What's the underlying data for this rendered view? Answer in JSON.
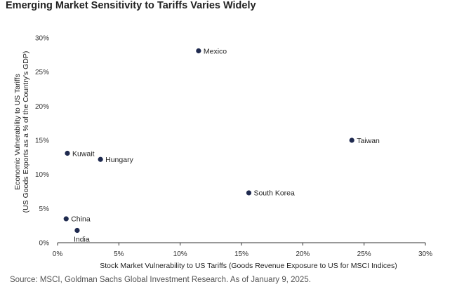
{
  "title": "Emerging Market Sensitivity to Tariffs Varies Widely",
  "source": "Source: MSCI, Goldman Sachs Global Investment Research. As of January 9, 2025.",
  "colors": {
    "point": "#1f2a4f",
    "axis": "#333333"
  },
  "chart_data": {
    "type": "scatter",
    "title": "Emerging Market Sensitivity to Tariffs Varies Widely",
    "xlabel": "Stock Market Vulnerability to US Tariffs (Goods Revenue Exposure to US for MSCI Indices)",
    "ylabel": [
      "Economic Vulnerability to US Tariffs",
      "(US Goods Exports as a % of the Country's GDP)"
    ],
    "xlim": [
      0,
      30
    ],
    "ylim": [
      0,
      30
    ],
    "xticks": [
      0,
      5,
      10,
      15,
      20,
      25,
      30
    ],
    "yticks": [
      0,
      5,
      10,
      15,
      20,
      25,
      30
    ],
    "xtick_labels": [
      "0%",
      "5%",
      "10%",
      "15%",
      "20%",
      "25%",
      "30%"
    ],
    "ytick_labels": [
      "0%",
      "5%",
      "10%",
      "15%",
      "20%",
      "25%",
      "30%"
    ],
    "grid": false,
    "points": [
      {
        "label": "Mexico",
        "x": 11.5,
        "y": 28.1,
        "label_pos": "right"
      },
      {
        "label": "Taiwan",
        "x": 24.0,
        "y": 15.0,
        "label_pos": "right"
      },
      {
        "label": "Kuwait",
        "x": 0.8,
        "y": 13.1,
        "label_pos": "right"
      },
      {
        "label": "Hungary",
        "x": 3.5,
        "y": 12.2,
        "label_pos": "right"
      },
      {
        "label": "South Korea",
        "x": 15.6,
        "y": 7.3,
        "label_pos": "right"
      },
      {
        "label": "China",
        "x": 0.7,
        "y": 3.5,
        "label_pos": "right"
      },
      {
        "label": "India",
        "x": 1.6,
        "y": 1.8,
        "label_pos": "below"
      }
    ]
  }
}
